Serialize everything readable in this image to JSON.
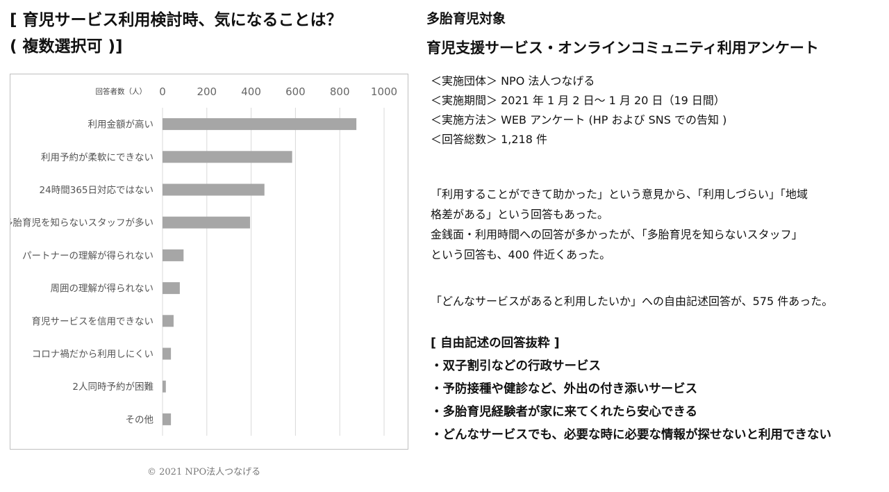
{
  "heading": {
    "line1": "[ 育児サービス利用検討時、気になることは？",
    "line2": "( 複数選択可 )]"
  },
  "chart_data": {
    "type": "bar",
    "orientation": "horizontal",
    "unit_label": "回答者数（人）",
    "categories": [
      "利用金額が高い",
      "利用予約が柔軟にできない",
      "24時間365日対応ではない",
      "多胎育児を知らないスタッフが多い",
      "パートナーの理解が得られない",
      "周囲の理解が得られない",
      "育児サービスを信用できない",
      "コロナ禍だから利用しにくい",
      "2人同時予約が困難",
      "その他"
    ],
    "values": [
      875,
      585,
      460,
      395,
      95,
      78,
      50,
      38,
      15,
      38
    ],
    "xlim": [
      0,
      1000
    ],
    "xticks": [
      0,
      200,
      400,
      600,
      800,
      1000
    ],
    "grid": "vertical",
    "bar_color": "#a6a6a6",
    "grid_color": "#d9d9d9"
  },
  "copyright": "© 2021 NPO法人つなげる",
  "survey": {
    "target": "多胎育児対象",
    "title": "育児支援サービス・オンラインコミュニティ利用アンケート",
    "info": [
      "＜実施団体＞ NPO 法人つなげる",
      "＜実施期間＞ 2021 年 1 月 2 日～ 1 月 20 日（19 日間）",
      "＜実施方法＞ WEB アンケート (HP および SNS での告知 )",
      "＜回答総数＞ 1,218 件"
    ],
    "findings": [
      "「利用することができて助かった」という意見から、「利用しづらい」「地域",
      "格差がある」という回答もあった。",
      "金銭面・利用時間への回答が多かったが、「多胎育児を知らないスタッフ」",
      "という回答も、400 件近くあった。"
    ],
    "free_text_note": "「どんなサービスがあると利用したいか」への自由記述回答が、575 件あった。",
    "excerpt_title": "[ 自由記述の回答抜粋 ]",
    "excerpts": [
      "・双子割引などの行政サービス",
      "・予防接種や健診など、外出の付き添いサービス",
      "・多胎育児経験者が家に来てくれたら安心できる",
      "・どんなサービスでも、必要な時に必要な情報が探せないと利用できない"
    ]
  }
}
